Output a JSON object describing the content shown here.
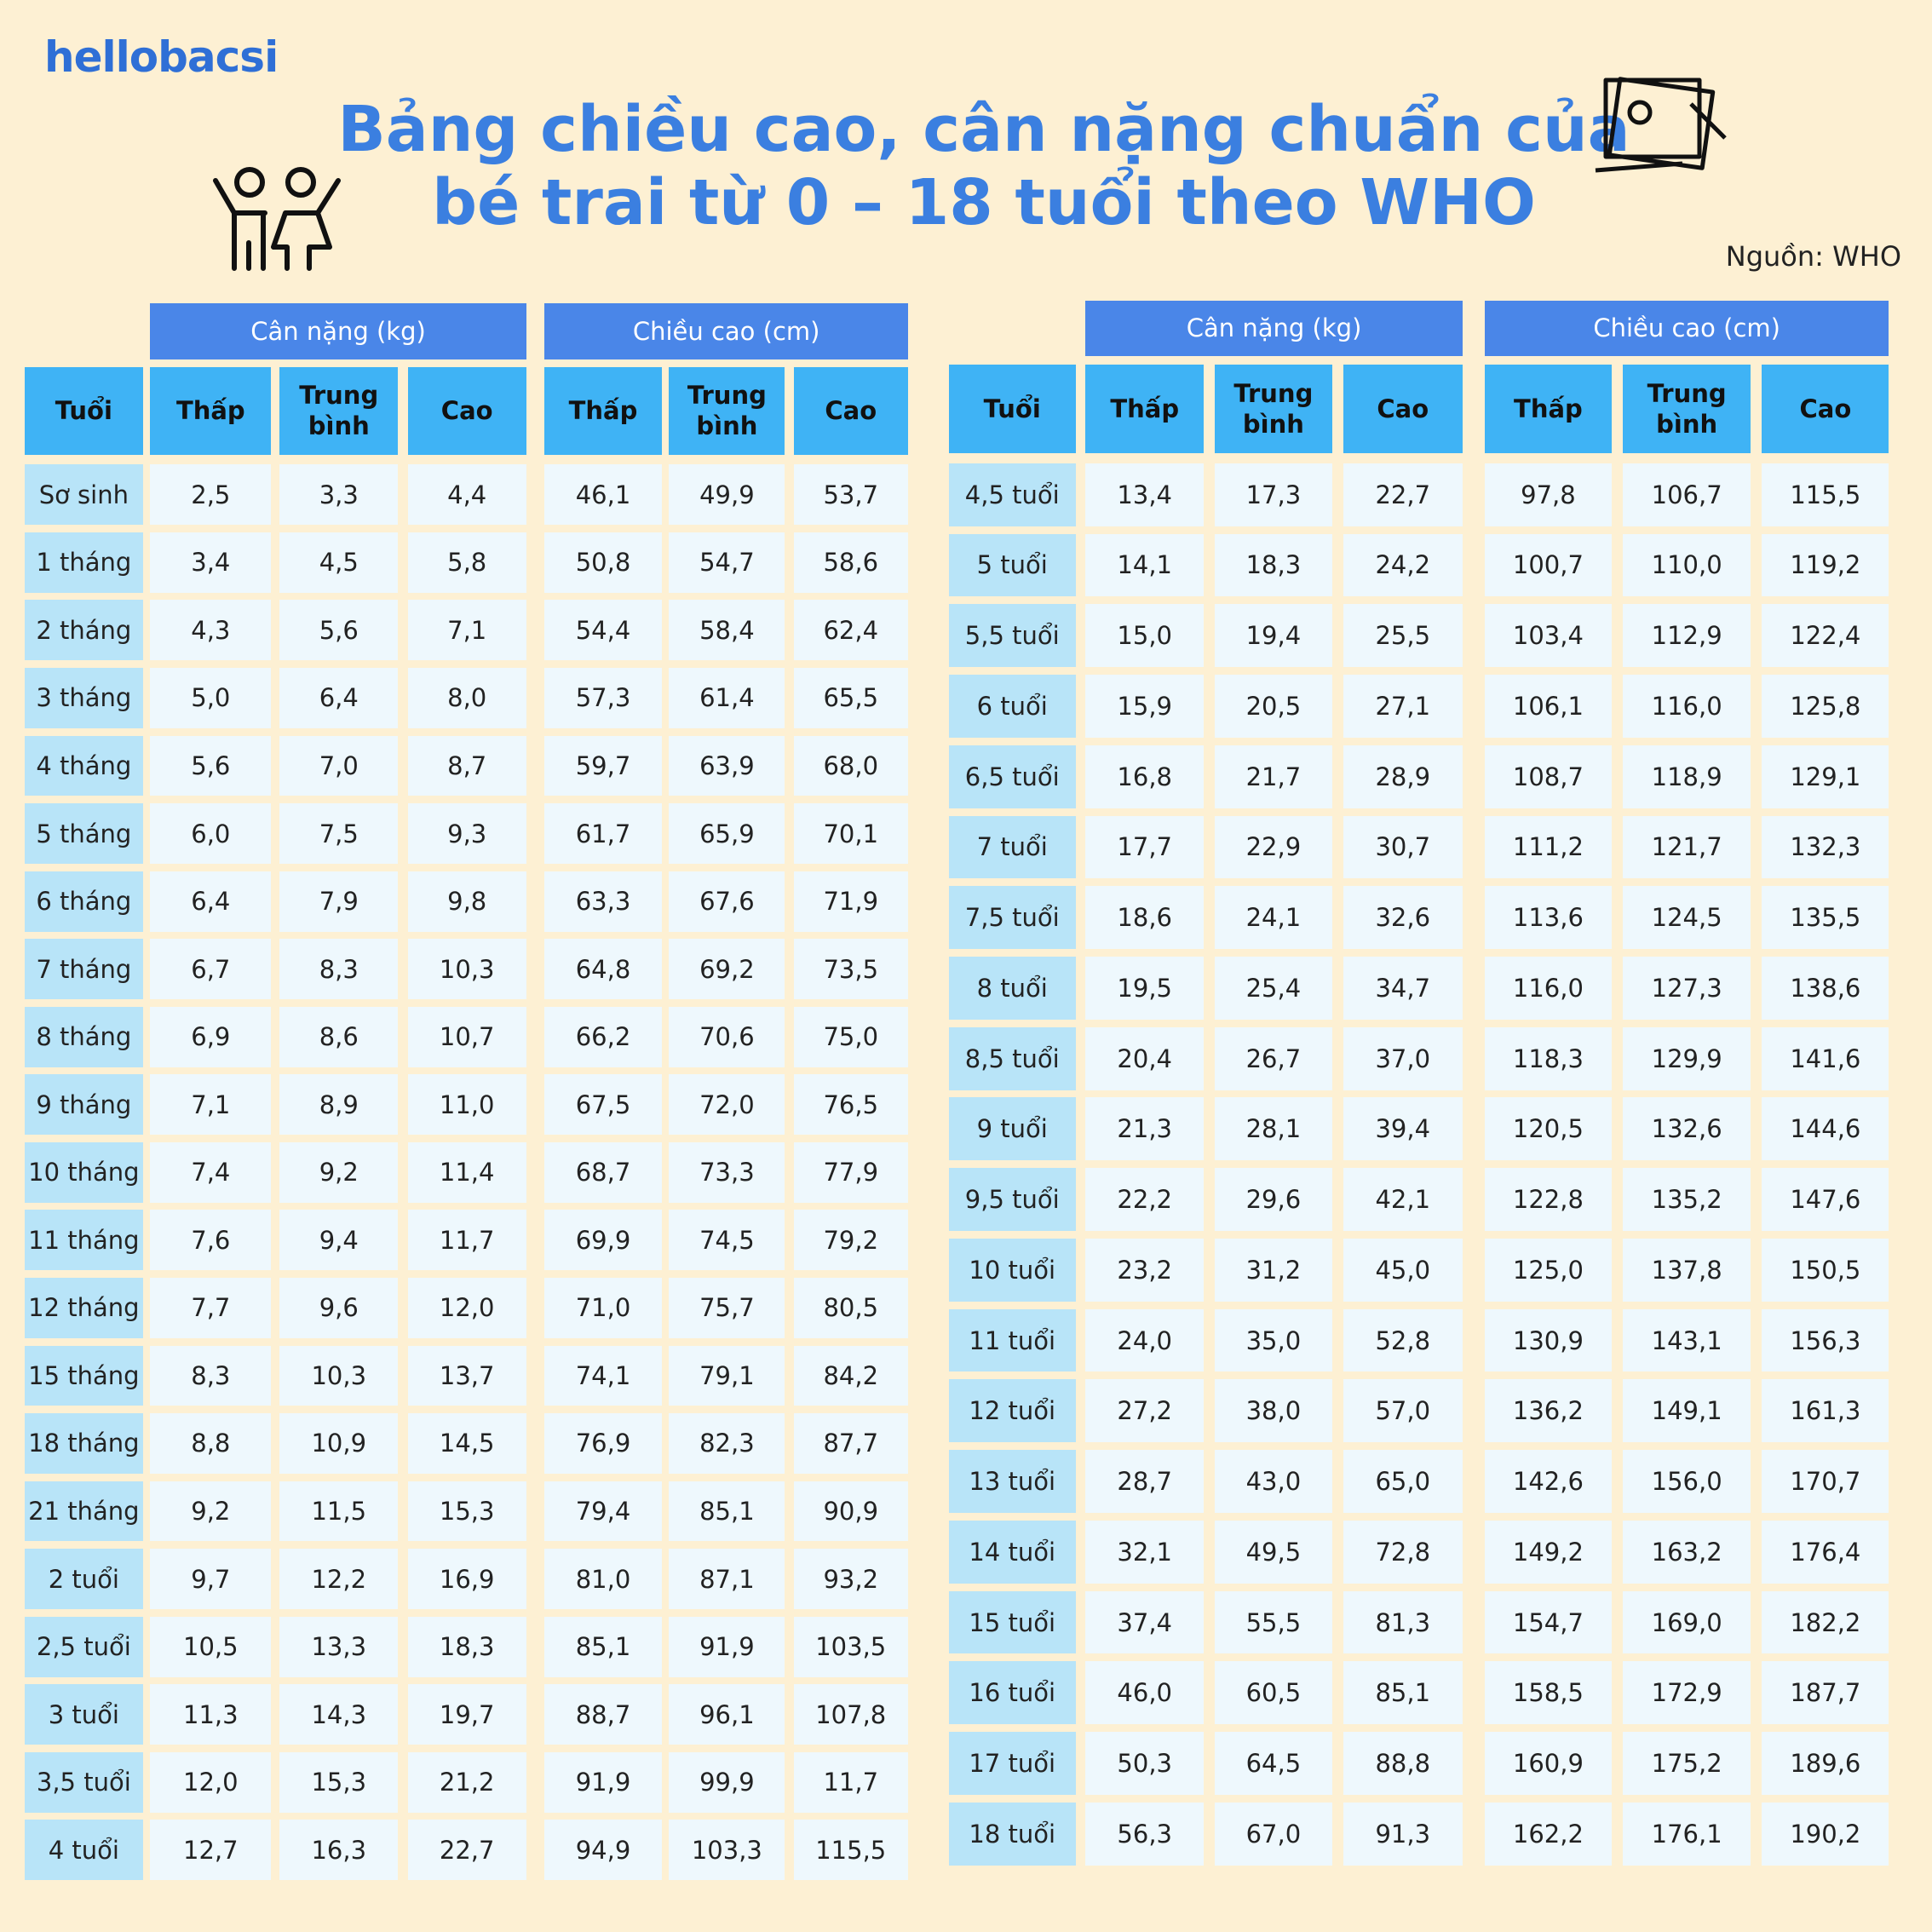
{
  "brand": "hellobacsi",
  "title": [
    "Bảng chiều cao, cân nặng chuẩn của",
    "bé trai từ 0 – 18 tuổi theo WHO"
  ],
  "source": "Nguồn: WHO",
  "tables": [
    {
      "groups": [
        "Cân nặng (kg)",
        "Chiều cao (cm)"
      ],
      "columns": [
        "Tuổi",
        "Thấp",
        "Trung bình",
        "Cao",
        "Thấp",
        "Trung bình",
        "Cao"
      ],
      "rows": [
        [
          "Sơ sinh",
          "2,5",
          "3,3",
          "4,4",
          "46,1",
          "49,9",
          "53,7"
        ],
        [
          "1 tháng",
          "3,4",
          "4,5",
          "5,8",
          "50,8",
          "54,7",
          "58,6"
        ],
        [
          "2 tháng",
          "4,3",
          "5,6",
          "7,1",
          "54,4",
          "58,4",
          "62,4"
        ],
        [
          "3 tháng",
          "5,0",
          "6,4",
          "8,0",
          "57,3",
          "61,4",
          "65,5"
        ],
        [
          "4 tháng",
          "5,6",
          "7,0",
          "8,7",
          "59,7",
          "63,9",
          "68,0"
        ],
        [
          "5 tháng",
          "6,0",
          "7,5",
          "9,3",
          "61,7",
          "65,9",
          "70,1"
        ],
        [
          "6 tháng",
          "6,4",
          "7,9",
          "9,8",
          "63,3",
          "67,6",
          "71,9"
        ],
        [
          "7 tháng",
          "6,7",
          "8,3",
          "10,3",
          "64,8",
          "69,2",
          "73,5"
        ],
        [
          "8 tháng",
          "6,9",
          "8,6",
          "10,7",
          "66,2",
          "70,6",
          "75,0"
        ],
        [
          "9 tháng",
          "7,1",
          "8,9",
          "11,0",
          "67,5",
          "72,0",
          "76,5"
        ],
        [
          "10 tháng",
          "7,4",
          "9,2",
          "11,4",
          "68,7",
          "73,3",
          "77,9"
        ],
        [
          "11 tháng",
          "7,6",
          "9,4",
          "11,7",
          "69,9",
          "74,5",
          "79,2"
        ],
        [
          "12 tháng",
          "7,7",
          "9,6",
          "12,0",
          "71,0",
          "75,7",
          "80,5"
        ],
        [
          "15 tháng",
          "8,3",
          "10,3",
          "13,7",
          "74,1",
          "79,1",
          "84,2"
        ],
        [
          "18 tháng",
          "8,8",
          "10,9",
          "14,5",
          "76,9",
          "82,3",
          "87,7"
        ],
        [
          "21 tháng",
          "9,2",
          "11,5",
          "15,3",
          "79,4",
          "85,1",
          "90,9"
        ],
        [
          "2 tuổi",
          "9,7",
          "12,2",
          "16,9",
          "81,0",
          "87,1",
          "93,2"
        ],
        [
          "2,5 tuổi",
          "10,5",
          "13,3",
          "18,3",
          "85,1",
          "91,9",
          "103,5"
        ],
        [
          "3 tuổi",
          "11,3",
          "14,3",
          "19,7",
          "88,7",
          "96,1",
          "107,8"
        ],
        [
          "3,5 tuổi",
          "12,0",
          "15,3",
          "21,2",
          "91,9",
          "99,9",
          "11,7"
        ],
        [
          "4 tuổi",
          "12,7",
          "16,3",
          "22,7",
          "94,9",
          "103,3",
          "115,5"
        ]
      ]
    },
    {
      "groups": [
        "Cân nặng (kg)",
        "Chiều cao (cm)"
      ],
      "columns": [
        "Tuổi",
        "Thấp",
        "Trung bình",
        "Cao",
        "Thấp",
        "Trung bình",
        "Cao"
      ],
      "rows": [
        [
          "4,5 tuổi",
          "13,4",
          "17,3",
          "22,7",
          "97,8",
          "106,7",
          "115,5"
        ],
        [
          "5 tuổi",
          "14,1",
          "18,3",
          "24,2",
          "100,7",
          "110,0",
          "119,2"
        ],
        [
          "5,5 tuổi",
          "15,0",
          "19,4",
          "25,5",
          "103,4",
          "112,9",
          "122,4"
        ],
        [
          "6 tuổi",
          "15,9",
          "20,5",
          "27,1",
          "106,1",
          "116,0",
          "125,8"
        ],
        [
          "6,5 tuổi",
          "16,8",
          "21,7",
          "28,9",
          "108,7",
          "118,9",
          "129,1"
        ],
        [
          "7 tuổi",
          "17,7",
          "22,9",
          "30,7",
          "111,2",
          "121,7",
          "132,3"
        ],
        [
          "7,5 tuổi",
          "18,6",
          "24,1",
          "32,6",
          "113,6",
          "124,5",
          "135,5"
        ],
        [
          "8 tuổi",
          "19,5",
          "25,4",
          "34,7",
          "116,0",
          "127,3",
          "138,6"
        ],
        [
          "8,5 tuổi",
          "20,4",
          "26,7",
          "37,0",
          "118,3",
          "129,9",
          "141,6"
        ],
        [
          "9 tuổi",
          "21,3",
          "28,1",
          "39,4",
          "120,5",
          "132,6",
          "144,6"
        ],
        [
          "9,5 tuổi",
          "22,2",
          "29,6",
          "42,1",
          "122,8",
          "135,2",
          "147,6"
        ],
        [
          "10 tuổi",
          "23,2",
          "31,2",
          "45,0",
          "125,0",
          "137,8",
          "150,5"
        ],
        [
          "11 tuổi",
          "24,0",
          "35,0",
          "52,8",
          "130,9",
          "143,1",
          "156,3"
        ],
        [
          "12 tuổi",
          "27,2",
          "38,0",
          "57,0",
          "136,2",
          "149,1",
          "161,3"
        ],
        [
          "13 tuổi",
          "28,7",
          "43,0",
          "65,0",
          "142,6",
          "156,0",
          "170,7"
        ],
        [
          "14 tuổi",
          "32,1",
          "49,5",
          "72,8",
          "149,2",
          "163,2",
          "176,4"
        ],
        [
          "15 tuổi",
          "37,4",
          "55,5",
          "81,3",
          "154,7",
          "169,0",
          "182,2"
        ],
        [
          "16 tuổi",
          "46,0",
          "60,5",
          "85,1",
          "158,5",
          "172,9",
          "187,7"
        ],
        [
          "17 tuổi",
          "50,3",
          "64,5",
          "88,8",
          "160,9",
          "175,2",
          "189,6"
        ],
        [
          "18 tuổi",
          "56,3",
          "67,0",
          "91,3",
          "162,2",
          "176,1",
          "190,2"
        ]
      ]
    }
  ]
}
